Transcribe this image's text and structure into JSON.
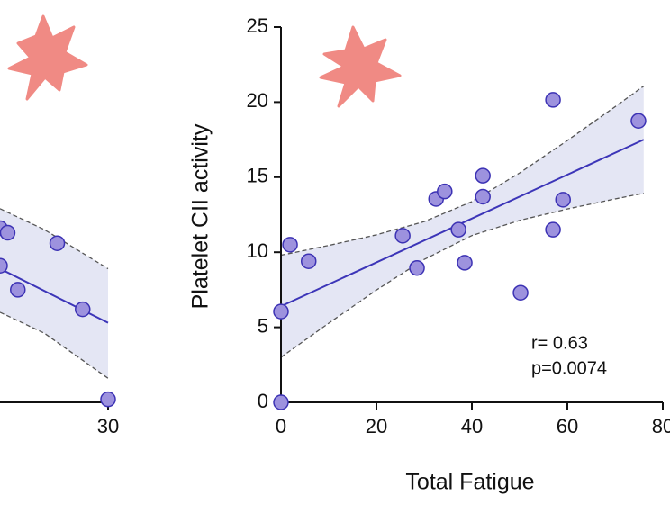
{
  "chart_data": [
    {
      "type": "scatter",
      "xlim": [
        21.5,
        30
      ],
      "ylim": [
        0,
        25
      ],
      "xticks": [
        30
      ],
      "points": {
        "x": [
          21.5,
          21.5,
          22.1,
          22.9,
          26,
          28,
          30
        ],
        "y": [
          11.6,
          9.1,
          11.3,
          7.5,
          10.6,
          6.2,
          0.2
        ]
      },
      "fit": {
        "x": [
          21.5,
          30
        ],
        "y": [
          8.9,
          5.3
        ]
      },
      "band": {
        "x": [
          21.5,
          25,
          30
        ],
        "upper": [
          12.9,
          11.5,
          8.9
        ],
        "lower": [
          6.0,
          4.6,
          1.6
        ]
      },
      "point_color": "#9d92de",
      "edge_color": "#3c32b4",
      "line_color": "#3c35b8",
      "band_color": "#e4e6f4"
    },
    {
      "type": "scatter",
      "x_label": "Total Fatigue",
      "y_label": "Platelet CII activity",
      "xlim": [
        0,
        80
      ],
      "ylim": [
        0,
        25
      ],
      "xticks": [
        0,
        20,
        40,
        60,
        80
      ],
      "yticks": [
        0,
        5,
        10,
        15,
        20,
        25
      ],
      "points": {
        "x": [
          0,
          0,
          1.9,
          5.8,
          25.5,
          28.5,
          32.5,
          34.3,
          37.2,
          38.5,
          42.3,
          42.3,
          50.2,
          57,
          57,
          59.1,
          74.9
        ],
        "y": [
          6.05,
          0,
          10.5,
          9.4,
          11.1,
          8.95,
          13.55,
          14.05,
          11.5,
          9.3,
          15.1,
          13.7,
          7.3,
          20.15,
          11.5,
          13.5,
          18.75
        ]
      },
      "fit": {
        "x": [
          0,
          76
        ],
        "y": [
          6.4,
          17.5
        ]
      },
      "band": {
        "x": [
          0,
          10,
          20,
          30,
          40,
          50,
          60,
          70,
          76
        ],
        "upper": [
          9.8,
          10.45,
          11.16,
          12.04,
          13.37,
          15.28,
          17.44,
          19.69,
          21.07
        ],
        "lower": [
          3.0,
          5.27,
          7.48,
          9.52,
          11.11,
          12.12,
          12.88,
          13.55,
          13.93
        ]
      },
      "annotations": [
        "r= 0.63",
        "p=0.0074"
      ],
      "point_color": "#9d92de",
      "edge_color": "#3c32b4",
      "line_color": "#3c35b8",
      "band_color": "#e4e6f4"
    }
  ]
}
